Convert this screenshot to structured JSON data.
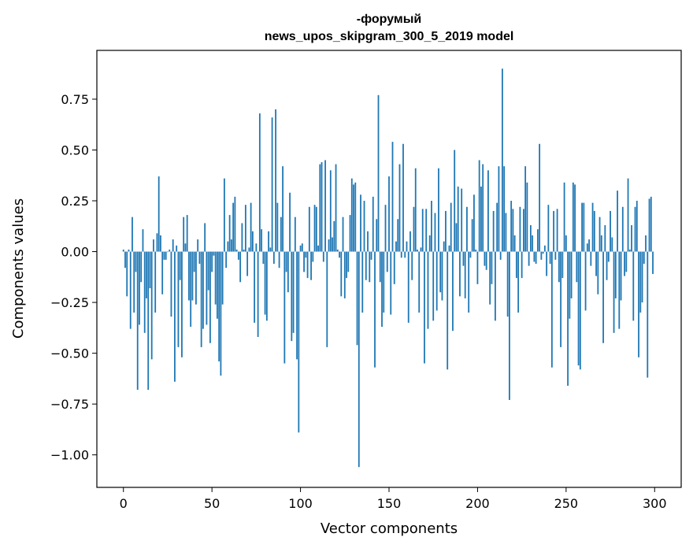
{
  "chart_data": {
    "type": "bar",
    "title_line1": "-форумый",
    "title_line2": "news_upos_skipgram_300_5_2019 model",
    "xlabel": "Vector components",
    "ylabel": "Components values",
    "xlim": [
      -15,
      315
    ],
    "ylim": [
      -1.16,
      0.99
    ],
    "xticks": [
      0,
      50,
      100,
      150,
      200,
      250,
      300
    ],
    "xtick_labels": [
      "0",
      "50",
      "100",
      "150",
      "200",
      "250",
      "300"
    ],
    "yticks": [
      0.75,
      0.5,
      0.25,
      0.0,
      -0.25,
      -0.5,
      -0.75,
      -1.0
    ],
    "ytick_labels": [
      "0.75",
      "0.50",
      "0.25",
      "0.00",
      "−0.25",
      "−0.50",
      "−0.75",
      "−1.00"
    ],
    "bar_color": "#1f77b4",
    "values": [
      0.01,
      -0.08,
      -0.22,
      0.01,
      -0.38,
      0.17,
      -0.3,
      -0.1,
      -0.68,
      -0.36,
      -0.15,
      0.11,
      -0.4,
      -0.23,
      -0.68,
      -0.18,
      -0.53,
      0.06,
      -0.3,
      0.09,
      0.37,
      0.08,
      -0.21,
      -0.04,
      -0.04,
      0.0,
      0.01,
      -0.32,
      0.06,
      -0.64,
      0.03,
      -0.47,
      -0.14,
      -0.52,
      0.17,
      0.04,
      0.18,
      -0.24,
      -0.37,
      -0.24,
      -0.1,
      -0.26,
      0.06,
      -0.06,
      -0.47,
      -0.38,
      0.14,
      -0.36,
      -0.19,
      -0.45,
      -0.1,
      -0.02,
      -0.26,
      -0.33,
      -0.54,
      -0.61,
      -0.26,
      0.36,
      -0.08,
      0.05,
      0.18,
      0.06,
      0.24,
      0.27,
      0.01,
      -0.04,
      -0.15,
      0.14,
      0.01,
      0.23,
      -0.12,
      0.02,
      0.24,
      0.1,
      -0.35,
      0.04,
      -0.42,
      0.68,
      0.11,
      -0.06,
      -0.31,
      -0.34,
      0.1,
      0.02,
      0.66,
      -0.06,
      0.7,
      0.24,
      -0.08,
      0.17,
      0.42,
      -0.55,
      -0.1,
      -0.2,
      0.29,
      -0.44,
      -0.4,
      0.17,
      -0.53,
      -0.89,
      0.03,
      0.04,
      -0.1,
      -0.03,
      -0.13,
      0.22,
      -0.14,
      -0.05,
      0.23,
      0.22,
      0.03,
      0.43,
      0.44,
      -0.05,
      0.45,
      -0.47,
      0.06,
      0.4,
      0.07,
      0.15,
      0.43,
      0.01,
      -0.03,
      -0.22,
      0.17,
      -0.23,
      -0.13,
      -0.1,
      0.18,
      0.36,
      0.33,
      0.34,
      -0.46,
      -1.06,
      0.28,
      -0.3,
      0.25,
      -0.14,
      0.1,
      -0.15,
      -0.04,
      0.27,
      -0.57,
      0.16,
      0.77,
      -0.15,
      -0.37,
      -0.3,
      0.23,
      -0.1,
      0.37,
      -0.31,
      0.54,
      -0.16,
      0.05,
      0.16,
      0.43,
      -0.03,
      0.53,
      -0.03,
      0.05,
      -0.35,
      0.1,
      -0.14,
      0.22,
      0.41,
      0.01,
      -0.3,
      0.02,
      0.21,
      -0.55,
      0.21,
      -0.38,
      0.08,
      0.25,
      -0.34,
      0.19,
      -0.29,
      0.41,
      -0.2,
      -0.24,
      0.05,
      0.2,
      -0.58,
      0.03,
      0.24,
      -0.39,
      0.5,
      0.14,
      0.32,
      -0.22,
      0.31,
      -0.07,
      -0.23,
      0.22,
      -0.3,
      -0.03,
      0.16,
      0.28,
      0.01,
      -0.16,
      0.45,
      0.32,
      0.43,
      -0.07,
      -0.09,
      0.4,
      -0.26,
      -0.16,
      0.2,
      -0.34,
      0.24,
      0.42,
      -0.04,
      0.9,
      0.42,
      0.19,
      -0.32,
      -0.73,
      0.25,
      0.21,
      0.08,
      -0.13,
      -0.3,
      0.22,
      -0.13,
      0.21,
      0.42,
      0.34,
      -0.07,
      0.13,
      0.08,
      -0.05,
      -0.06,
      0.11,
      0.53,
      -0.04,
      -0.01,
      0.03,
      -0.12,
      0.23,
      -0.06,
      -0.57,
      0.2,
      -0.04,
      0.21,
      -0.15,
      -0.47,
      -0.13,
      0.34,
      0.08,
      -0.66,
      -0.33,
      -0.23,
      0.34,
      0.33,
      -0.15,
      -0.56,
      -0.58,
      0.24,
      0.24,
      -0.29,
      0.04,
      0.06,
      -0.07,
      0.24,
      0.2,
      -0.12,
      -0.21,
      0.17,
      0.08,
      -0.45,
      0.13,
      -0.14,
      -0.05,
      0.2,
      0.07,
      -0.4,
      -0.23,
      0.3,
      -0.38,
      -0.24,
      0.22,
      -0.12,
      -0.1,
      0.36,
      0.01,
      0.13,
      -0.34,
      0.22,
      0.25,
      -0.52,
      -0.3,
      -0.25,
      -0.06,
      0.08,
      -0.62,
      0.26,
      0.27,
      -0.11
    ]
  }
}
